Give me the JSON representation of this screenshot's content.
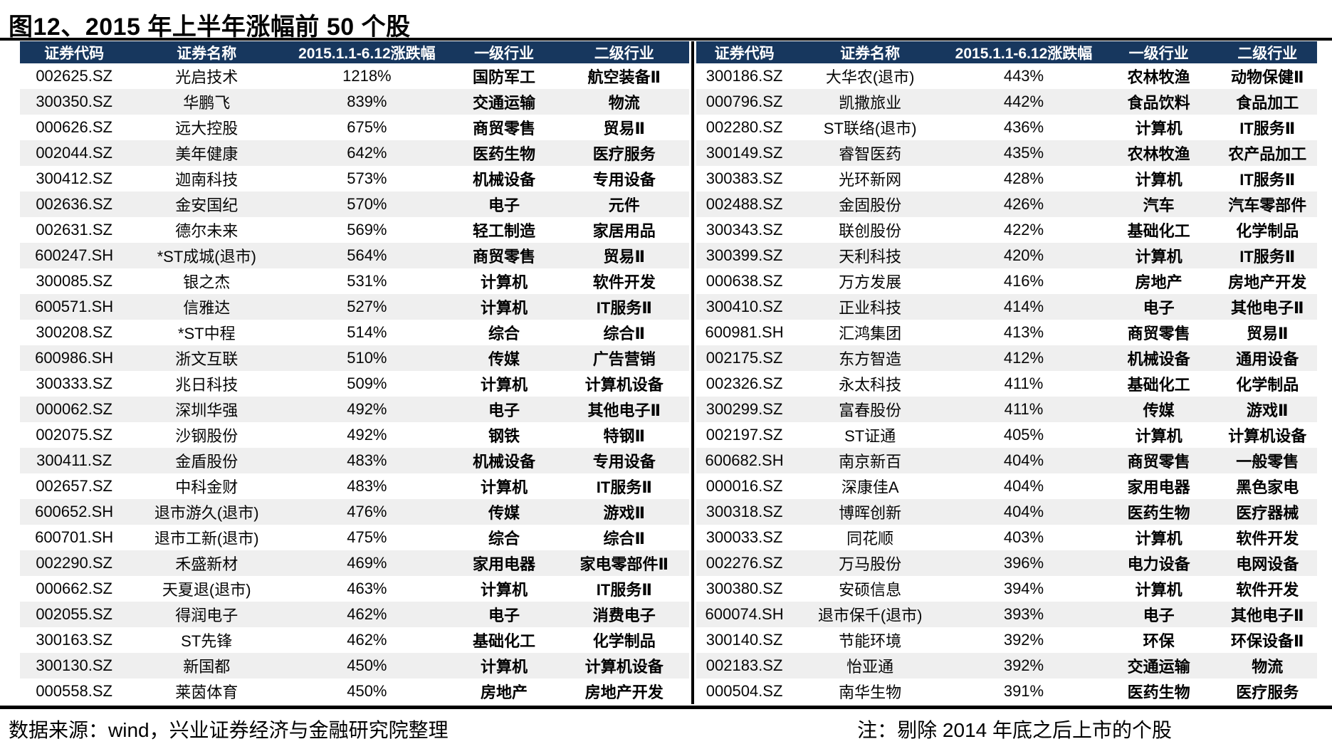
{
  "title": "图12、2015 年上半年涨幅前 50 个股",
  "columns": [
    "证券代码",
    "证券名称",
    "2015.1.1-6.12涨跌幅",
    "一级行业",
    "二级行业"
  ],
  "tables": {
    "left": {
      "rows": [
        [
          "002625.SZ",
          "光启技术",
          "1218%",
          "国防军工",
          "航空装备Ⅱ"
        ],
        [
          "300350.SZ",
          "华鹏飞",
          "839%",
          "交通运输",
          "物流"
        ],
        [
          "000626.SZ",
          "远大控股",
          "675%",
          "商贸零售",
          "贸易Ⅱ"
        ],
        [
          "002044.SZ",
          "美年健康",
          "642%",
          "医药生物",
          "医疗服务"
        ],
        [
          "300412.SZ",
          "迦南科技",
          "573%",
          "机械设备",
          "专用设备"
        ],
        [
          "002636.SZ",
          "金安国纪",
          "570%",
          "电子",
          "元件"
        ],
        [
          "002631.SZ",
          "德尔未来",
          "569%",
          "轻工制造",
          "家居用品"
        ],
        [
          "600247.SH",
          "*ST成城(退市)",
          "564%",
          "商贸零售",
          "贸易Ⅱ"
        ],
        [
          "300085.SZ",
          "银之杰",
          "531%",
          "计算机",
          "软件开发"
        ],
        [
          "600571.SH",
          "信雅达",
          "527%",
          "计算机",
          "IT服务Ⅱ"
        ],
        [
          "300208.SZ",
          "*ST中程",
          "514%",
          "综合",
          "综合Ⅱ"
        ],
        [
          "600986.SH",
          "浙文互联",
          "510%",
          "传媒",
          "广告营销"
        ],
        [
          "300333.SZ",
          "兆日科技",
          "509%",
          "计算机",
          "计算机设备"
        ],
        [
          "000062.SZ",
          "深圳华强",
          "492%",
          "电子",
          "其他电子Ⅱ"
        ],
        [
          "002075.SZ",
          "沙钢股份",
          "492%",
          "钢铁",
          "特钢Ⅱ"
        ],
        [
          "300411.SZ",
          "金盾股份",
          "483%",
          "机械设备",
          "专用设备"
        ],
        [
          "002657.SZ",
          "中科金财",
          "483%",
          "计算机",
          "IT服务Ⅱ"
        ],
        [
          "600652.SH",
          "退市游久(退市)",
          "476%",
          "传媒",
          "游戏Ⅱ"
        ],
        [
          "600701.SH",
          "退市工新(退市)",
          "475%",
          "综合",
          "综合Ⅱ"
        ],
        [
          "002290.SZ",
          "禾盛新材",
          "469%",
          "家用电器",
          "家电零部件Ⅱ"
        ],
        [
          "000662.SZ",
          "天夏退(退市)",
          "463%",
          "计算机",
          "IT服务Ⅱ"
        ],
        [
          "002055.SZ",
          "得润电子",
          "462%",
          "电子",
          "消费电子"
        ],
        [
          "300163.SZ",
          "ST先锋",
          "462%",
          "基础化工",
          "化学制品"
        ],
        [
          "300130.SZ",
          "新国都",
          "450%",
          "计算机",
          "计算机设备"
        ],
        [
          "000558.SZ",
          "莱茵体育",
          "450%",
          "房地产",
          "房地产开发"
        ]
      ]
    },
    "right": {
      "rows": [
        [
          "300186.SZ",
          "大华农(退市)",
          "443%",
          "农林牧渔",
          "动物保健Ⅱ"
        ],
        [
          "000796.SZ",
          "凯撒旅业",
          "442%",
          "食品饮料",
          "食品加工"
        ],
        [
          "002280.SZ",
          "ST联络(退市)",
          "436%",
          "计算机",
          "IT服务Ⅱ"
        ],
        [
          "300149.SZ",
          "睿智医药",
          "435%",
          "农林牧渔",
          "农产品加工"
        ],
        [
          "300383.SZ",
          "光环新网",
          "428%",
          "计算机",
          "IT服务Ⅱ"
        ],
        [
          "002488.SZ",
          "金固股份",
          "426%",
          "汽车",
          "汽车零部件"
        ],
        [
          "300343.SZ",
          "联创股份",
          "422%",
          "基础化工",
          "化学制品"
        ],
        [
          "300399.SZ",
          "天利科技",
          "420%",
          "计算机",
          "IT服务Ⅱ"
        ],
        [
          "000638.SZ",
          "万方发展",
          "416%",
          "房地产",
          "房地产开发"
        ],
        [
          "300410.SZ",
          "正业科技",
          "414%",
          "电子",
          "其他电子Ⅱ"
        ],
        [
          "600981.SH",
          "汇鸿集团",
          "413%",
          "商贸零售",
          "贸易Ⅱ"
        ],
        [
          "002175.SZ",
          "东方智造",
          "412%",
          "机械设备",
          "通用设备"
        ],
        [
          "002326.SZ",
          "永太科技",
          "411%",
          "基础化工",
          "化学制品"
        ],
        [
          "300299.SZ",
          "富春股份",
          "411%",
          "传媒",
          "游戏Ⅱ"
        ],
        [
          "002197.SZ",
          "ST证通",
          "405%",
          "计算机",
          "计算机设备"
        ],
        [
          "600682.SH",
          "南京新百",
          "404%",
          "商贸零售",
          "一般零售"
        ],
        [
          "000016.SZ",
          "深康佳A",
          "404%",
          "家用电器",
          "黑色家电"
        ],
        [
          "300318.SZ",
          "博晖创新",
          "404%",
          "医药生物",
          "医疗器械"
        ],
        [
          "300033.SZ",
          "同花顺",
          "403%",
          "计算机",
          "软件开发"
        ],
        [
          "002276.SZ",
          "万马股份",
          "396%",
          "电力设备",
          "电网设备"
        ],
        [
          "300380.SZ",
          "安硕信息",
          "394%",
          "计算机",
          "软件开发"
        ],
        [
          "600074.SH",
          "退市保千(退市)",
          "393%",
          "电子",
          "其他电子Ⅱ"
        ],
        [
          "300140.SZ",
          "节能环境",
          "392%",
          "环保",
          "环保设备Ⅱ"
        ],
        [
          "002183.SZ",
          "怡亚通",
          "392%",
          "交通运输",
          "物流"
        ],
        [
          "000504.SZ",
          "南华生物",
          "391%",
          "医药生物",
          "医疗服务"
        ]
      ]
    }
  },
  "footer": {
    "source": "数据来源：wind，兴业证券经济与金融研究院整理",
    "note": "注：剔除 2014 年底之后上市的个股"
  },
  "colors": {
    "header_bg": "#17375E",
    "header_text": "#FFFFFF",
    "row_alt_bg": "#EFEFEF",
    "rule": "#000000"
  }
}
